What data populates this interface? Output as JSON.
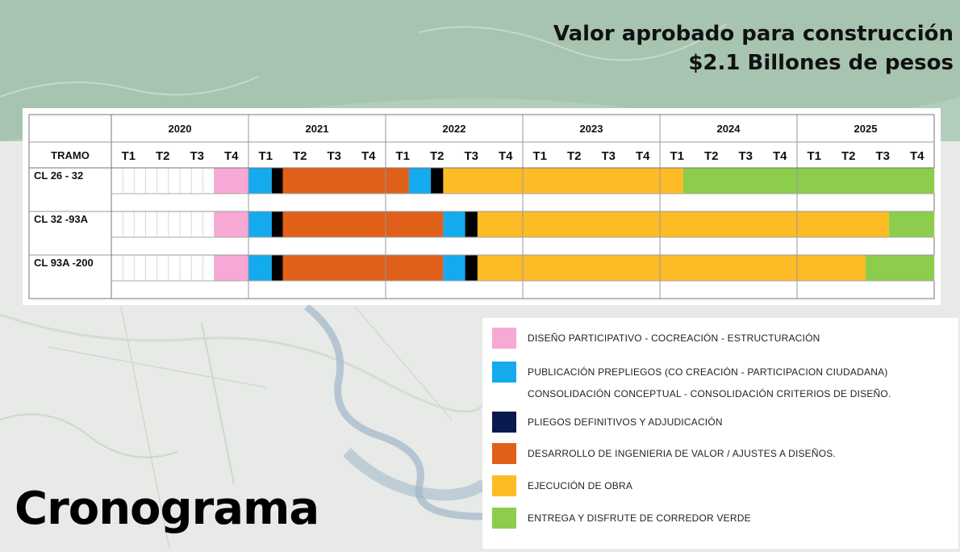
{
  "header": {
    "line1": "Valor aprobado para construcción",
    "line2": "$2.1 Billones de pesos"
  },
  "page_title": "Cronograma",
  "colors": {
    "diseno": "#f7a8d4",
    "publicacion": "#14aaee",
    "pliegos": "#000000",
    "desarrollo": "#e0601a",
    "ejecucion": "#fdbb26",
    "entrega": "#8ccd4c",
    "legend_pliegos_swatch": "#0a1a4e"
  },
  "chart_data": {
    "type": "gantt",
    "row_header": "TRAMO",
    "years": [
      "2020",
      "2021",
      "2022",
      "2023",
      "2024",
      "2025"
    ],
    "quarters": [
      "T1",
      "T2",
      "T3",
      "T4"
    ],
    "rows": [
      {
        "label": "CL 26 - 32",
        "segments": [
          {
            "phase": "diseno",
            "start": 2020.75,
            "end": 2021.0
          },
          {
            "phase": "publicacion",
            "start": 2021.0,
            "end": 2021.17
          },
          {
            "phase": "pliegos",
            "start": 2021.17,
            "end": 2021.25
          },
          {
            "phase": "desarrollo",
            "start": 2021.25,
            "end": 2022.17
          },
          {
            "phase": "publicacion",
            "start": 2022.17,
            "end": 2022.33
          },
          {
            "phase": "pliegos",
            "start": 2022.33,
            "end": 2022.42
          },
          {
            "phase": "ejecucion",
            "start": 2022.42,
            "end": 2024.17
          },
          {
            "phase": "entrega",
            "start": 2024.17,
            "end": 2026.0
          }
        ]
      },
      {
        "label": "CL 32 -93A",
        "segments": [
          {
            "phase": "diseno",
            "start": 2020.75,
            "end": 2021.0
          },
          {
            "phase": "publicacion",
            "start": 2021.0,
            "end": 2021.17
          },
          {
            "phase": "pliegos",
            "start": 2021.17,
            "end": 2021.25
          },
          {
            "phase": "desarrollo",
            "start": 2021.25,
            "end": 2022.42
          },
          {
            "phase": "publicacion",
            "start": 2022.42,
            "end": 2022.58
          },
          {
            "phase": "pliegos",
            "start": 2022.58,
            "end": 2022.67
          },
          {
            "phase": "ejecucion",
            "start": 2022.67,
            "end": 2025.67
          },
          {
            "phase": "entrega",
            "start": 2025.67,
            "end": 2026.0
          }
        ]
      },
      {
        "label": "CL 93A -200",
        "segments": [
          {
            "phase": "diseno",
            "start": 2020.75,
            "end": 2021.0
          },
          {
            "phase": "publicacion",
            "start": 2021.0,
            "end": 2021.17
          },
          {
            "phase": "pliegos",
            "start": 2021.17,
            "end": 2021.25
          },
          {
            "phase": "desarrollo",
            "start": 2021.25,
            "end": 2022.42
          },
          {
            "phase": "publicacion",
            "start": 2022.42,
            "end": 2022.58
          },
          {
            "phase": "pliegos",
            "start": 2022.58,
            "end": 2022.67
          },
          {
            "phase": "ejecucion",
            "start": 2022.67,
            "end": 2025.5
          },
          {
            "phase": "entrega",
            "start": 2025.5,
            "end": 2026.0
          }
        ]
      }
    ],
    "xlim": [
      2020,
      2026
    ]
  },
  "legend": [
    {
      "phase": "diseno",
      "lines": [
        "DISEÑO PARTICIPATIVO - COCREACIÓN - ESTRUCTURACIÓN"
      ]
    },
    {
      "phase": "publicacion",
      "lines": [
        "PUBLICACIÓN  PREPLIEGOS (CO CREACIÓN - PARTICIPACION CIUDADANA)",
        "CONSOLIDACIÓN CONCEPTUAL - CONSOLIDACIÓN CRITERIOS DE DISEÑO."
      ]
    },
    {
      "phase": "pliegos",
      "lines": [
        "PLIEGOS DEFINITIVOS Y ADJUDICACIÓN"
      ]
    },
    {
      "phase": "desarrollo",
      "lines": [
        "DESARROLLO DE INGENIERIA DE VALOR / AJUSTES A DISEÑOS."
      ]
    },
    {
      "phase": "ejecucion",
      "lines": [
        "EJECUCIÓN DE OBRA"
      ]
    },
    {
      "phase": "entrega",
      "lines": [
        "ENTREGA Y DISFRUTE DE CORREDOR VERDE"
      ]
    }
  ]
}
